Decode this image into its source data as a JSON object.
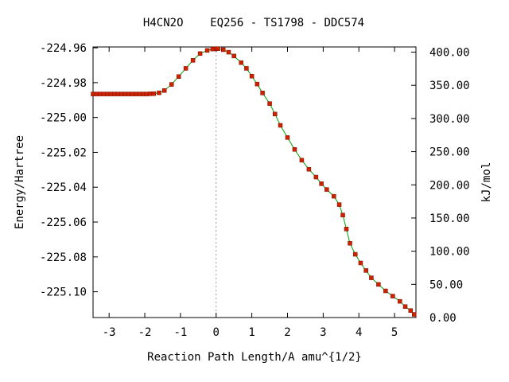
{
  "chart_data": {
    "type": "line",
    "title": "H4CN2O    EQ256 - TS1798 - DDC574",
    "xlabel": "Reaction Path Length/A amu^{1/2}",
    "ylabel": "Energy/Hartree",
    "y2label": "kJ/mol",
    "xlim": [
      -3.45,
      5.6
    ],
    "ylim": [
      -225.1148,
      -224.9595
    ],
    "y2lim": [
      0,
      407.8
    ],
    "x_ticks": [
      -3,
      -2,
      -1,
      0,
      1,
      2,
      3,
      4,
      5
    ],
    "y_ticks": [
      -224.96,
      -224.98,
      -225.0,
      -225.02,
      -225.04,
      -225.06,
      -225.08,
      -225.1
    ],
    "y_tick_labels": [
      "-224.96",
      "-224.98",
      "-225.00",
      "-225.02",
      "-225.04",
      "-225.06",
      "-225.08",
      "-225.10"
    ],
    "y2_ticks": [
      400,
      350,
      300,
      250,
      200,
      150,
      100,
      50,
      0
    ],
    "y2_tick_labels": [
      "400.00",
      "350.00",
      "300.00",
      "250.00",
      "200.00",
      "150.00",
      "100.00",
      "50.00",
      "0.00"
    ],
    "ts_marker_x": 0,
    "grid": false,
    "line_color": "#00a000",
    "point_color": "#cc2200",
    "series": [
      {
        "x": [
          -3.45,
          -3.35,
          -3.25,
          -3.15,
          -3.05,
          -2.95,
          -2.85,
          -2.75,
          -2.65,
          -2.55,
          -2.45,
          -2.35,
          -2.25,
          -2.15,
          -2.05,
          -1.95,
          -1.85,
          -1.75,
          -1.6,
          -1.45,
          -1.25,
          -1.05,
          -0.85,
          -0.65,
          -0.45,
          -0.25,
          -0.1,
          0,
          0.05,
          0.2,
          0.35,
          0.5,
          0.7,
          0.85,
          1.0,
          1.15,
          1.3,
          1.5,
          1.65,
          1.8,
          2.0,
          2.2,
          2.4,
          2.6,
          2.8,
          2.95,
          3.1,
          3.3,
          3.45,
          3.55,
          3.65,
          3.75,
          3.9,
          4.05,
          4.2,
          4.35,
          4.55,
          4.75,
          4.95,
          5.15,
          5.3,
          5.45,
          5.55
        ],
        "y": [
          -224.9865,
          -224.9865,
          -224.9865,
          -224.9865,
          -224.9865,
          -224.9865,
          -224.9865,
          -224.9865,
          -224.9865,
          -224.9865,
          -224.9865,
          -224.9865,
          -224.9865,
          -224.9865,
          -224.9865,
          -224.9865,
          -224.9864,
          -224.9863,
          -224.9858,
          -224.9845,
          -224.981,
          -224.9765,
          -224.9718,
          -224.9672,
          -224.9633,
          -224.9615,
          -224.9607,
          -224.9605,
          -224.9605,
          -224.9611,
          -224.9625,
          -224.9647,
          -224.9685,
          -224.9718,
          -224.9763,
          -224.9808,
          -224.9859,
          -224.992,
          -224.998,
          -225.0045,
          -225.0115,
          -225.0183,
          -225.0245,
          -225.0297,
          -225.0342,
          -225.038,
          -225.0413,
          -225.0452,
          -225.05,
          -225.056,
          -225.064,
          -225.0722,
          -225.0785,
          -225.0835,
          -225.0878,
          -225.092,
          -225.0958,
          -225.0995,
          -225.1025,
          -225.1055,
          -225.1085,
          -225.1108,
          -225.113
        ]
      }
    ]
  }
}
